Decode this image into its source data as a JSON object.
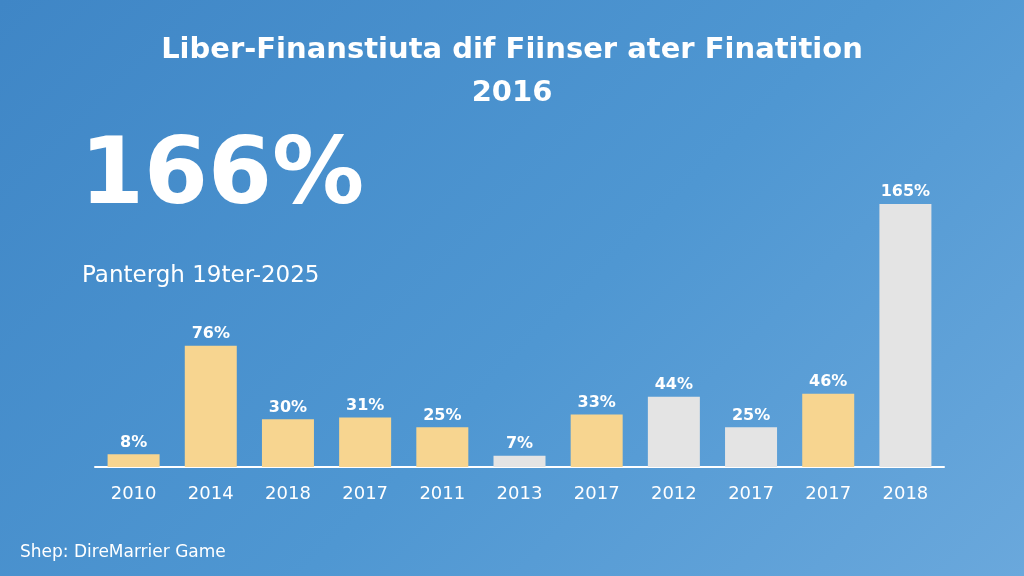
{
  "chart_data": {
    "type": "bar",
    "title": "Liber-Finanstiuta dif Fiinser ater Finatition",
    "subtitle": "2016",
    "annotations": [
      "166%",
      "Pantergh 19ter-2025",
      "Shep: DireMarrier Game"
    ],
    "categories": [
      "2010",
      "2014",
      "2018",
      "2017",
      "2011",
      "2013",
      "2017",
      "2012",
      "2017",
      "2017",
      "2018"
    ],
    "values": [
      8,
      76,
      30,
      31,
      25,
      7,
      33,
      44,
      25,
      46,
      165
    ],
    "colors": [
      "#f7d590",
      "#f7d590",
      "#f7d590",
      "#f7d590",
      "#f7d590",
      "#e4e4e4",
      "#f7d590",
      "#e4e4e4",
      "#e4e4e4",
      "#f7d590",
      "#e4e4e4"
    ],
    "value_labels": [
      "8%",
      "76%",
      "30%",
      "31%",
      "25%",
      "7%",
      "33%",
      "44%",
      "25%",
      "46%",
      "165%"
    ]
  }
}
